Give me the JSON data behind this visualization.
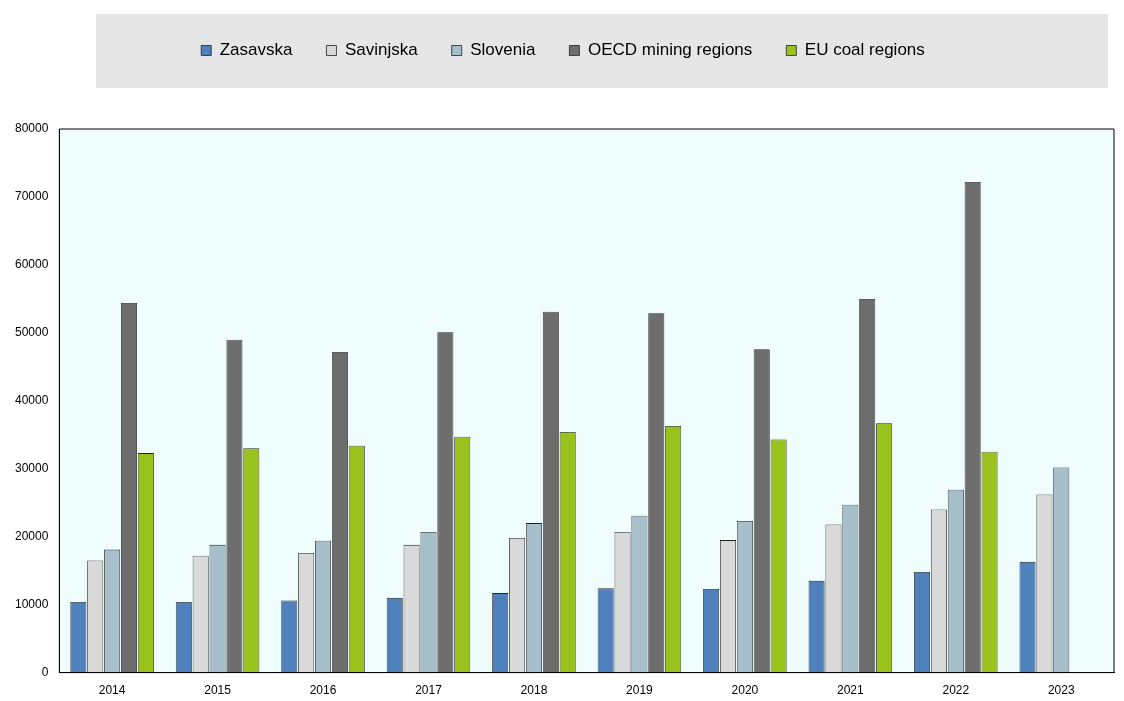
{
  "chart_data": {
    "type": "bar",
    "categories": [
      "2014",
      "2015",
      "2016",
      "2017",
      "2018",
      "2019",
      "2020",
      "2021",
      "2022",
      "2023"
    ],
    "series": [
      {
        "name": "Zasavska",
        "color": "#4f81bd",
        "values": [
          10400,
          10400,
          10600,
          11000,
          11700,
          12400,
          12300,
          13500,
          14800,
          16300
        ]
      },
      {
        "name": "Savinjska",
        "color": "#d9d9d9",
        "values": [
          16500,
          17200,
          17600,
          18800,
          19800,
          20700,
          19500,
          21800,
          24000,
          26200
        ]
      },
      {
        "name": "Slovenia",
        "color": "#a6bfcb",
        "values": [
          18100,
          18800,
          19400,
          20700,
          22000,
          23100,
          22300,
          24700,
          26900,
          30200
        ]
      },
      {
        "name": "OECD mining regions",
        "color": "#6d6d6d",
        "values": [
          54400,
          49000,
          47200,
          50100,
          53100,
          52900,
          47600,
          55000,
          72200,
          null
        ]
      },
      {
        "name": "EU coal regions",
        "color": "#99c31c",
        "values": [
          32300,
          33000,
          33400,
          34700,
          35400,
          36300,
          34300,
          36700,
          32500,
          null
        ]
      }
    ],
    "ylim": [
      0,
      80000
    ],
    "yticks": [
      0,
      10000,
      20000,
      30000,
      40000,
      50000,
      60000,
      70000,
      80000
    ],
    "grid": false,
    "legend": "top"
  }
}
